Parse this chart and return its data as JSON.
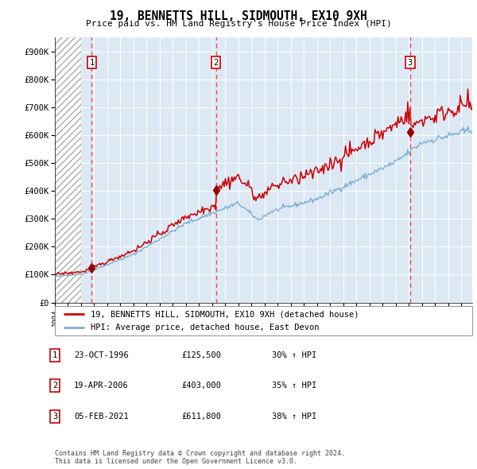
{
  "title": "19, BENNETTS HILL, SIDMOUTH, EX10 9XH",
  "subtitle": "Price paid vs. HM Land Registry's House Price Index (HPI)",
  "ylabel_ticks": [
    "£0",
    "£100K",
    "£200K",
    "£300K",
    "£400K",
    "£500K",
    "£600K",
    "£700K",
    "£800K",
    "£900K"
  ],
  "ytick_vals": [
    0,
    100000,
    200000,
    300000,
    400000,
    500000,
    600000,
    700000,
    800000,
    900000
  ],
  "ylim": [
    0,
    950000
  ],
  "xlim_start": 1994.0,
  "xlim_end": 2025.83,
  "sales": [
    {
      "label": "1",
      "year": 1996.81,
      "price": 125500
    },
    {
      "label": "2",
      "year": 2006.29,
      "price": 403000
    },
    {
      "label": "3",
      "year": 2021.09,
      "price": 611800
    }
  ],
  "legend_line1": "19, BENNETTS HILL, SIDMOUTH, EX10 9XH (detached house)",
  "legend_line2": "HPI: Average price, detached house, East Devon",
  "table_rows": [
    {
      "num": "1",
      "date": "23-OCT-1996",
      "price": "£125,500",
      "hpi": "30% ↑ HPI"
    },
    {
      "num": "2",
      "date": "19-APR-2006",
      "price": "£403,000",
      "hpi": "35% ↑ HPI"
    },
    {
      "num": "3",
      "date": "05-FEB-2021",
      "price": "£611,800",
      "hpi": "38% ↑ HPI"
    }
  ],
  "footer": "Contains HM Land Registry data © Crown copyright and database right 2024.\nThis data is licensed under the Open Government Licence v3.0.",
  "red_color": "#cc0000",
  "blue_color": "#7ab0d4",
  "bg_color": "#dce9f5",
  "grid_color": "#ffffff",
  "vline_color": "#ff4444",
  "marker_color": "#990000",
  "box_edge_color": "#cc0000",
  "hatch_end": 1996.0
}
